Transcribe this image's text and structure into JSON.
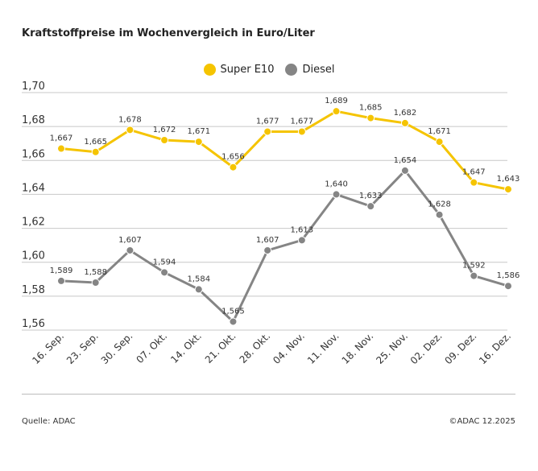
{
  "chart_data": {
    "type": "line",
    "title": "Kraftstoffpreise im Wochenvergleich in Euro/Liter",
    "categories": [
      "16. Sep.",
      "23. Sep.",
      "30. Sep.",
      "07. Okt.",
      "14. Okt.",
      "21. Okt.",
      "28. Okt.",
      "04. Nov.",
      "11. Nov.",
      "18. Nov.",
      "25. Nov.",
      "02. Dez.",
      "09. Dez.",
      "16. Dez."
    ],
    "series": [
      {
        "name": "Super E10",
        "color": "#f5c400",
        "values": [
          1.667,
          1.665,
          1.678,
          1.672,
          1.671,
          1.656,
          1.677,
          1.677,
          1.689,
          1.685,
          1.682,
          1.671,
          1.647,
          1.643
        ]
      },
      {
        "name": "Diesel",
        "color": "#858585",
        "values": [
          1.589,
          1.588,
          1.607,
          1.594,
          1.584,
          1.565,
          1.607,
          1.613,
          1.64,
          1.633,
          1.654,
          1.628,
          1.592,
          1.586
        ]
      }
    ],
    "yticks": [
      "1,70",
      "1,68",
      "1,66",
      "1,64",
      "1,62",
      "1,60",
      "1,58",
      "1,56"
    ],
    "ylim": [
      1.56,
      1.7
    ],
    "grid": true,
    "legend": "top-center"
  },
  "footer": {
    "source": "Quelle: ADAC",
    "copyright": "©ADAC 12.2025"
  }
}
